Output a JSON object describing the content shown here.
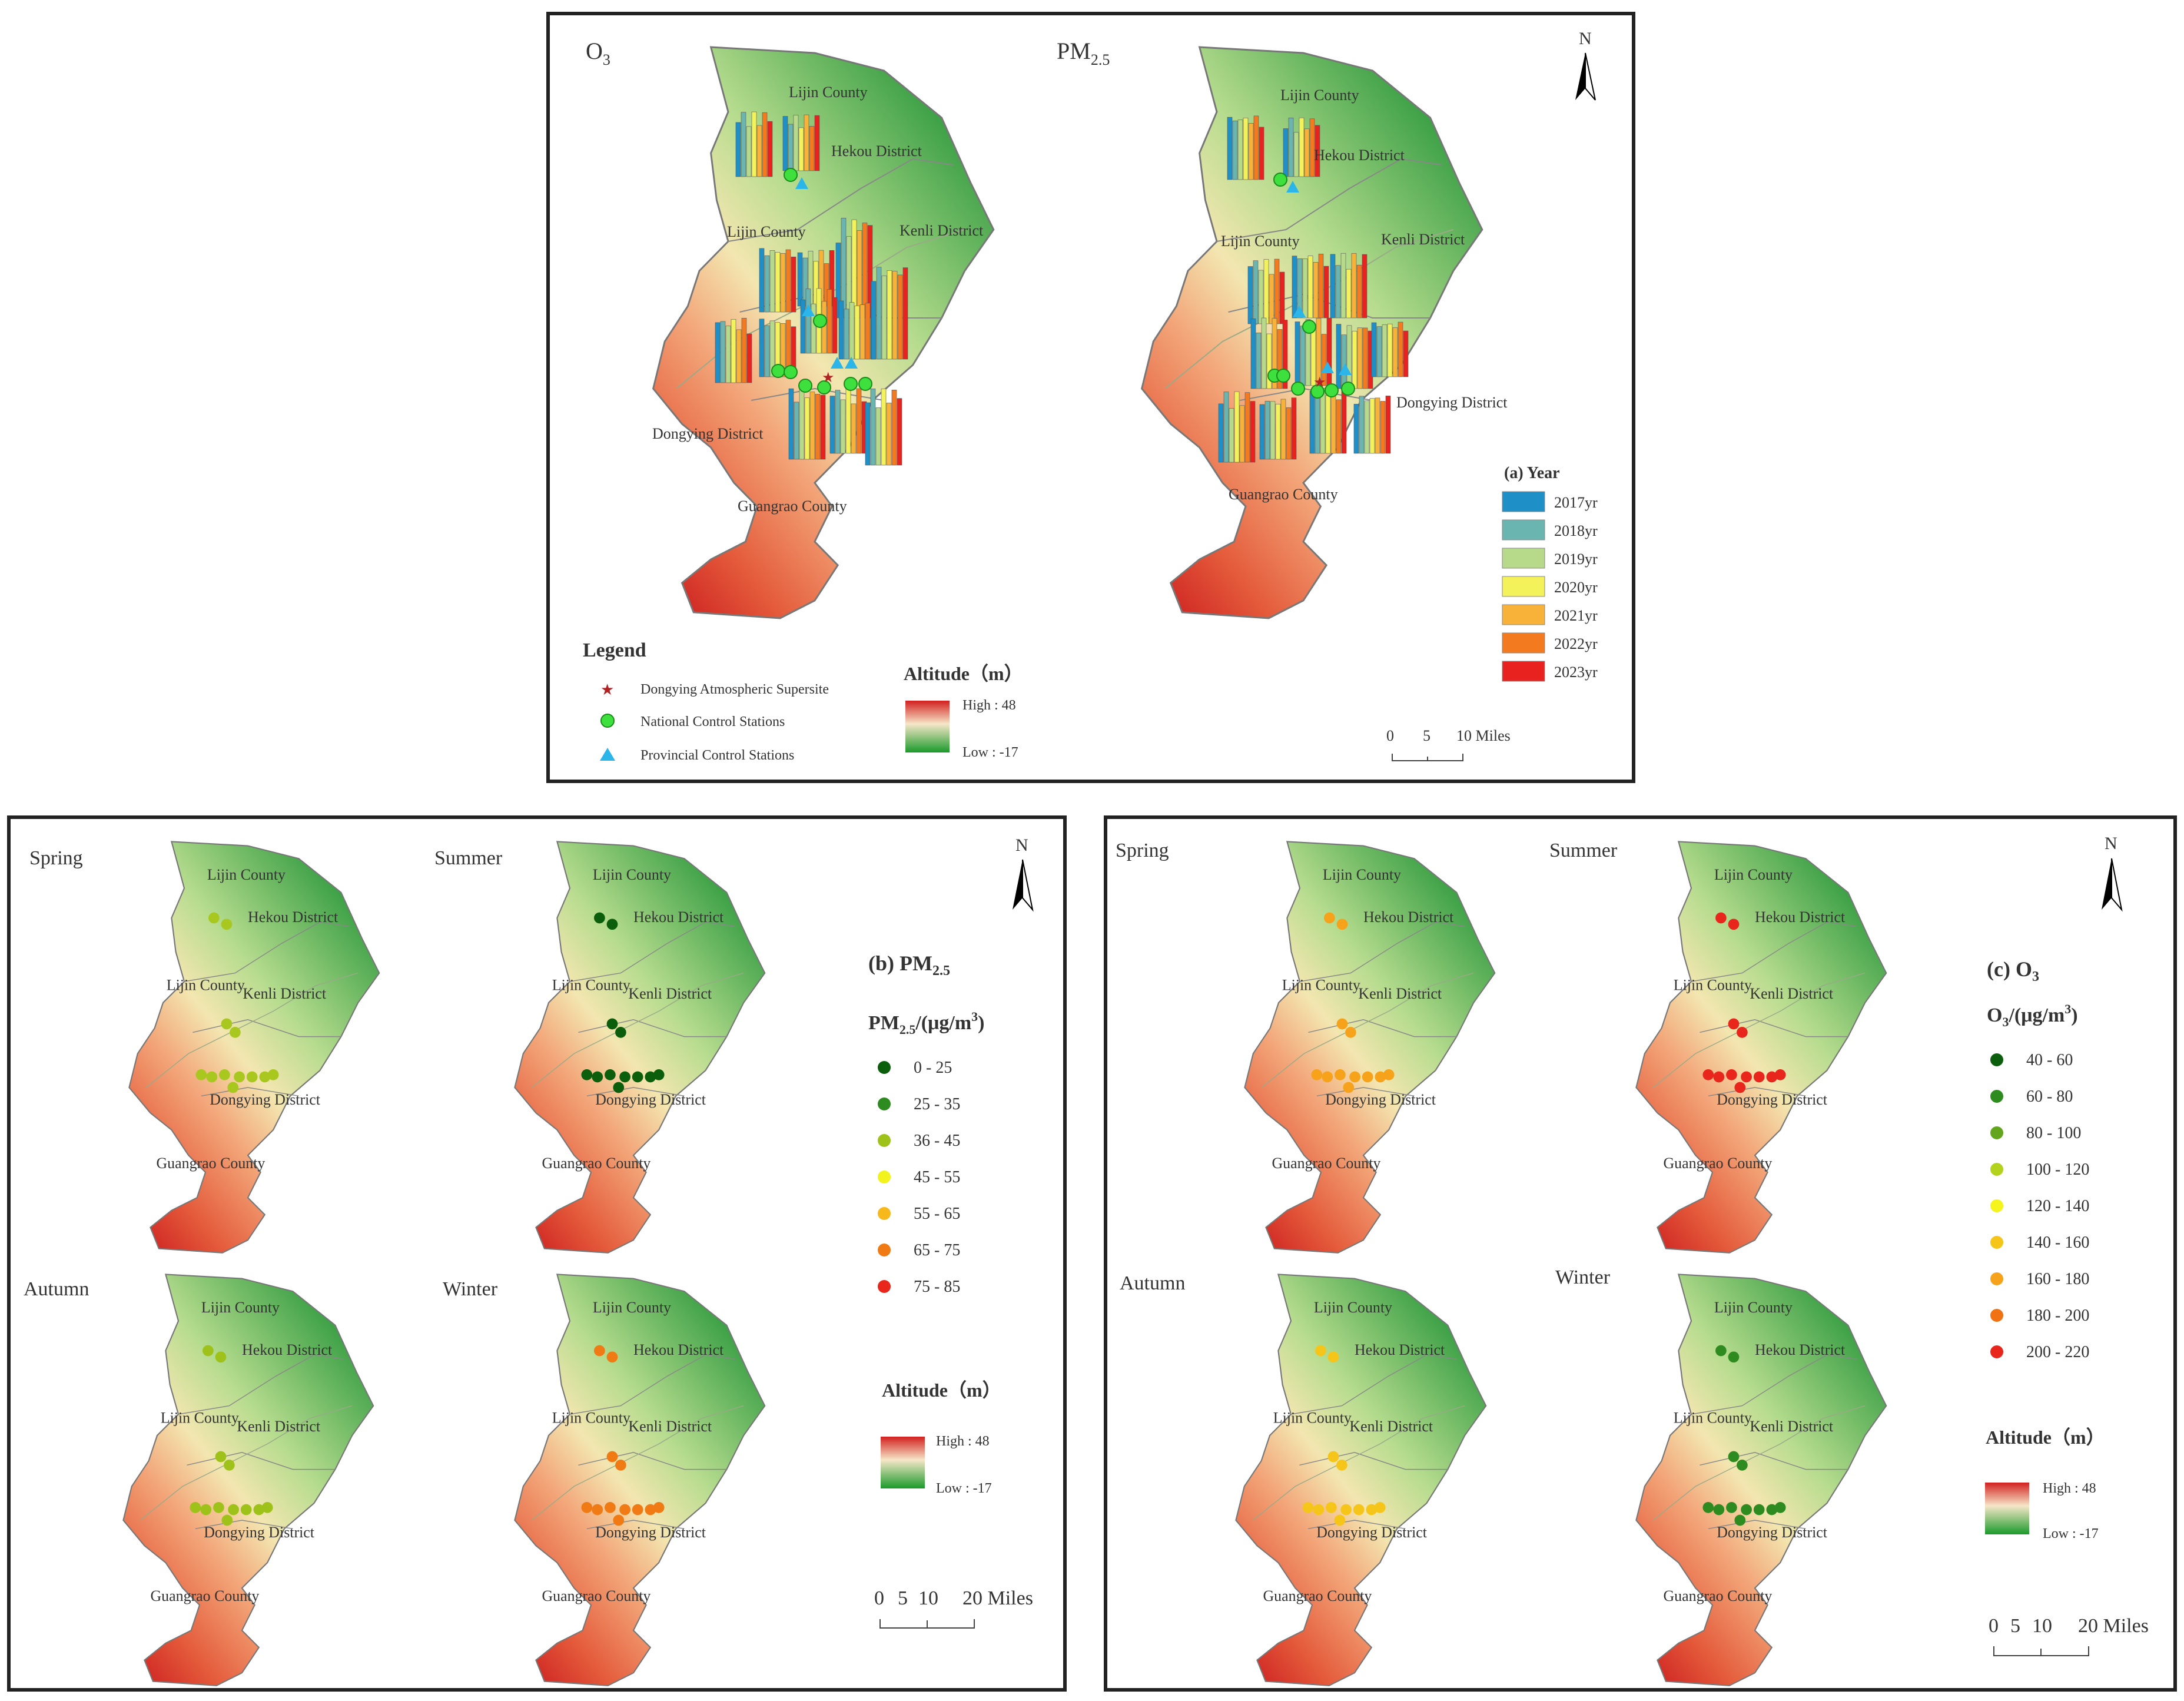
{
  "panel_a": {
    "maps": [
      {
        "title_base": "O",
        "title_sub": "3",
        "counties": [
          "Lijin County",
          "Hekou District",
          "Lijin County",
          "Kenli District",
          "Dongying District",
          "Guangrao County"
        ]
      },
      {
        "title_base": "PM",
        "title_sub": "2.5",
        "counties": [
          "Lijin County",
          "Hekou District",
          "Lijin County",
          "Kenli District",
          "Dongying District",
          "Guangrao County"
        ]
      }
    ],
    "year_legend": {
      "title": "(a) Year",
      "items": [
        {
          "label": "2017yr",
          "color": "#1f8fc8"
        },
        {
          "label": "2018yr",
          "color": "#6bb5b0"
        },
        {
          "label": "2019yr",
          "color": "#b7d98a"
        },
        {
          "label": "2020yr",
          "color": "#f4f25a"
        },
        {
          "label": "2021yr",
          "color": "#f8b23a"
        },
        {
          "label": "2022yr",
          "color": "#f47a1f"
        },
        {
          "label": "2023yr",
          "color": "#e8231f"
        }
      ]
    },
    "legend": {
      "title": "Legend",
      "items": [
        {
          "label": "Dongying Atmospheric Supersite",
          "symbol": "star"
        },
        {
          "label": "National Control Stations",
          "symbol": "circle"
        },
        {
          "label": "Provincial Control Stations",
          "symbol": "triangle"
        }
      ]
    },
    "altitude": {
      "title": "Altitude（m）",
      "high": "High : 48",
      "low": "Low : -17"
    },
    "scale": {
      "labels": [
        "0",
        "5",
        "10 Miles"
      ]
    },
    "north": "N"
  },
  "panel_b": {
    "title_base": "(b) PM",
    "title_sub": "2.5",
    "unit_base": "PM",
    "unit_sub": "2.5",
    "unit_tail": "/(μg/m",
    "unit_sup": "3",
    "unit_end": ")",
    "classes": [
      {
        "label": "0 - 25",
        "color": "#0b5e0b"
      },
      {
        "label": "25 - 35",
        "color": "#2e8b1f"
      },
      {
        "label": "36 - 45",
        "color": "#9ec21a"
      },
      {
        "label": "45 - 55",
        "color": "#f2f21c"
      },
      {
        "label": "55 - 65",
        "color": "#f6b81a"
      },
      {
        "label": "65 - 75",
        "color": "#f07a14"
      },
      {
        "label": "75 - 85",
        "color": "#e8261c"
      }
    ],
    "seasons": [
      {
        "name": "Spring",
        "color": "#a8c820",
        "counties": [
          "Lijin County",
          "Hekou District",
          "Lijin County",
          "Kenli District",
          "Dongying District",
          "Guangrao County"
        ]
      },
      {
        "name": "Summer",
        "color": "#0b5e0b",
        "counties": [
          "Lijin County",
          "Hekou District",
          "Lijin County",
          "Kenli District",
          "Dongying District",
          "Guangrao County"
        ]
      },
      {
        "name": "Autumn",
        "color": "#9ec21a",
        "counties": [
          "Lijin County",
          "Hekou District",
          "Lijin County",
          "Kenli District",
          "Dongying District",
          "Guangrao County"
        ]
      },
      {
        "name": "Winter",
        "color": "#f07a14",
        "counties": [
          "Lijin County",
          "Hekou District",
          "Lijin County",
          "Kenli District",
          "Dongying District",
          "Guangrao County"
        ]
      }
    ],
    "altitude": {
      "title": "Altitude（m）",
      "high": "High : 48",
      "low": "Low : -17"
    },
    "scale": {
      "labels": [
        "0",
        "5",
        "10",
        "20 Miles"
      ]
    },
    "north": "N"
  },
  "panel_c": {
    "title_base": "(c) O",
    "title_sub": "3",
    "unit_base": "O",
    "unit_sub": "3",
    "unit_tail": "/(μg/m",
    "unit_sup": "3",
    "unit_end": ")",
    "classes": [
      {
        "label": "40 - 60",
        "color": "#0b5e0b"
      },
      {
        "label": "60 - 80",
        "color": "#2e8b1f"
      },
      {
        "label": "80 - 100",
        "color": "#63a61e"
      },
      {
        "label": "100 - 120",
        "color": "#b3d21e"
      },
      {
        "label": "120 - 140",
        "color": "#f4f41c"
      },
      {
        "label": "140 - 160",
        "color": "#f6c51a"
      },
      {
        "label": "160 - 180",
        "color": "#f6a21a"
      },
      {
        "label": "180 - 200",
        "color": "#f07214"
      },
      {
        "label": "200 - 220",
        "color": "#e8261c"
      }
    ],
    "seasons": [
      {
        "name": "Spring",
        "color": "#f6a21a",
        "counties": [
          "Lijin County",
          "Hekou District",
          "Lijin County",
          "Kenli District",
          "Dongying District",
          "Guangrao County"
        ]
      },
      {
        "name": "Summer",
        "color": "#e8261c",
        "counties": [
          "Lijin County",
          "Hekou District",
          "Lijin County",
          "Kenli District",
          "Dongying District",
          "Guangrao County"
        ]
      },
      {
        "name": "Autumn",
        "color": "#f6c51a",
        "counties": [
          "Lijin County",
          "Hekou District",
          "Lijin County",
          "Kenli District",
          "Dongying District",
          "Guangrao County"
        ]
      },
      {
        "name": "Winter",
        "color": "#2e8b1f",
        "counties": [
          "Lijin County",
          "Hekou District",
          "Lijin County",
          "Kenli District",
          "Dongying District",
          "Guangrao County"
        ]
      }
    ],
    "altitude": {
      "title": "Altitude（m）",
      "high": "High : 48",
      "low": "Low : -17"
    },
    "scale": {
      "labels": [
        "0",
        "5",
        "10",
        "20 Miles"
      ]
    },
    "north": "N"
  }
}
